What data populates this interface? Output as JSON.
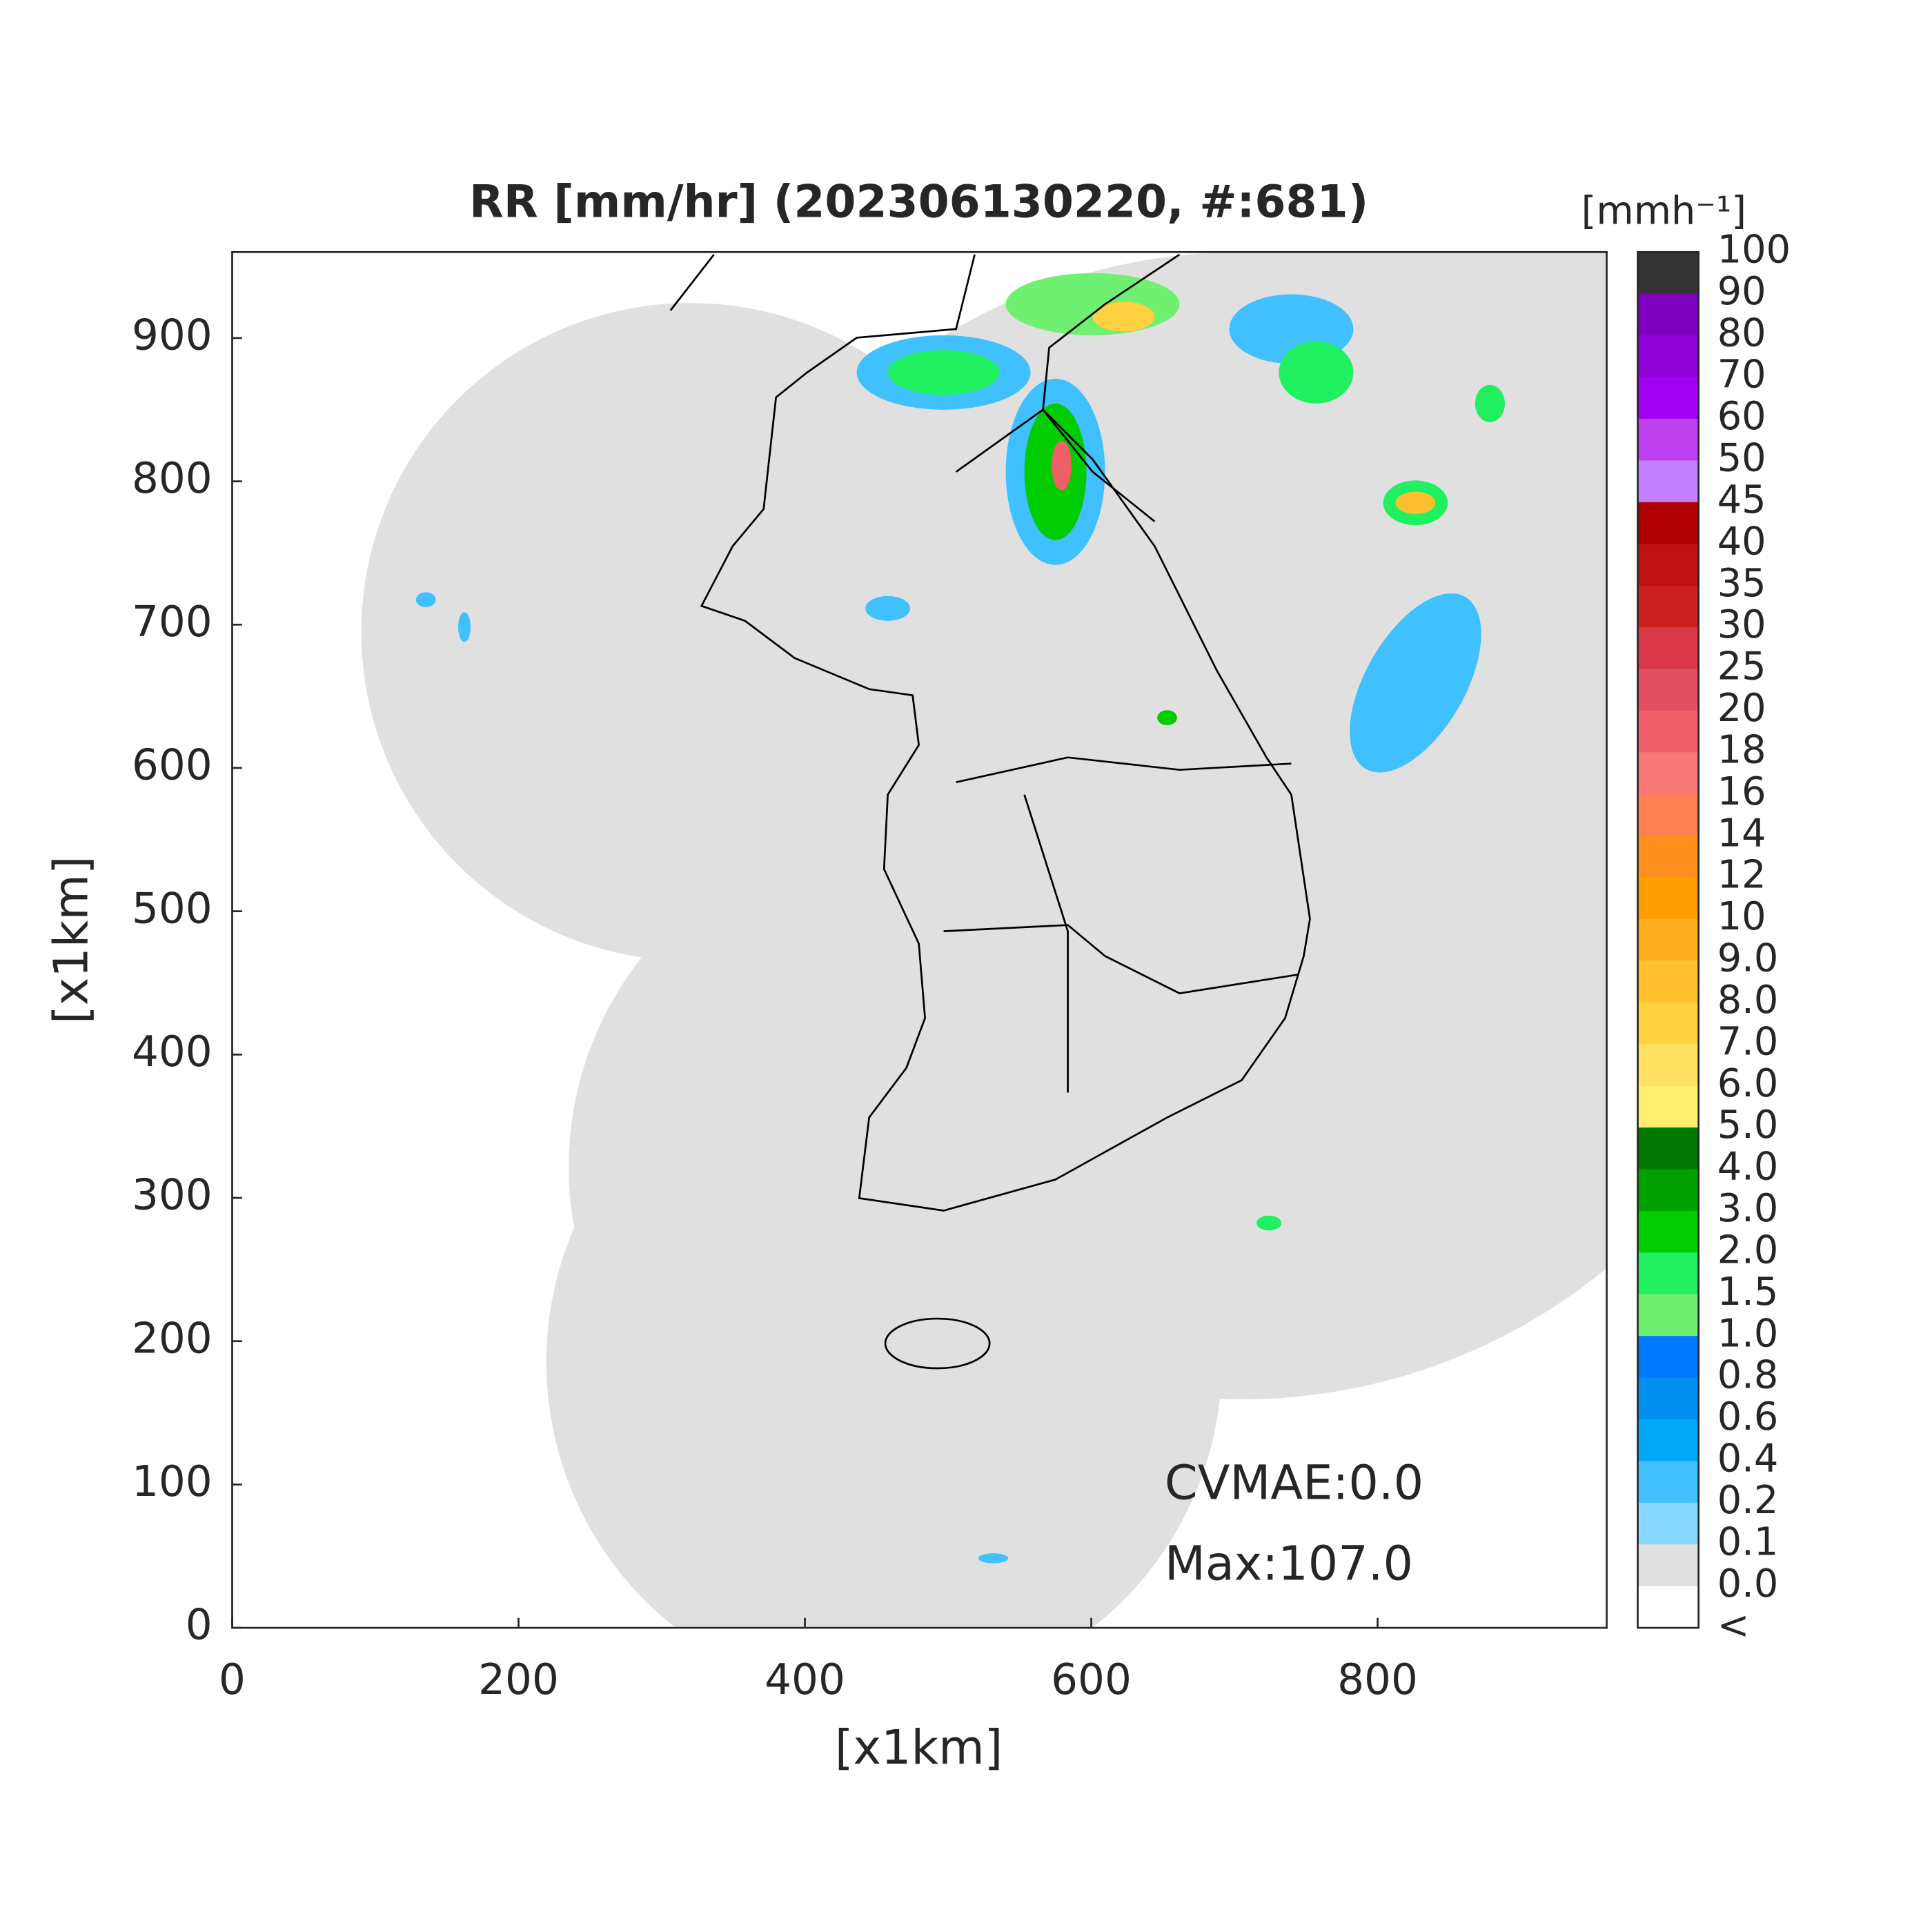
{
  "map": {
    "title": "RR [mm/hr] (202306130220, #:681)",
    "xlabel": "[x1km]",
    "ylabel": "[x1km]",
    "xlim": [
      0,
      960
    ],
    "ylim": [
      0,
      960
    ],
    "xticks": [
      0,
      200,
      400,
      600,
      800
    ],
    "yticks": [
      0,
      100,
      200,
      300,
      400,
      500,
      600,
      700,
      800,
      900
    ],
    "annotations": [
      "CVMAE:0.0",
      "Max:107.0"
    ],
    "colorbar": {
      "unit": "[mmh⁻¹]",
      "labels": [
        "100",
        "90",
        "80",
        "70",
        "60",
        "50",
        "45",
        "40",
        "35",
        "30",
        "25",
        "20",
        "18",
        "16",
        "14",
        "12",
        "10",
        "9.0",
        "8.0",
        "7.0",
        "6.0",
        "5.0",
        "4.0",
        "3.0",
        "2.0",
        "1.5",
        "1.0",
        "0.8",
        "0.6",
        "0.4",
        "0.2",
        "0.1",
        "0.0",
        "<"
      ],
      "colors": [
        "#333333",
        "#8000c0",
        "#9000d8",
        "#a000f0",
        "#c040f0",
        "#c080ff",
        "#b00000",
        "#c01010",
        "#cc2020",
        "#d83848",
        "#e05060",
        "#f06068",
        "#f87878",
        "#ff8050",
        "#ff9020",
        "#ffa000",
        "#ffb020",
        "#ffc030",
        "#ffd040",
        "#ffe060",
        "#fff070",
        "#007800",
        "#00a000",
        "#00cc00",
        "#20f060",
        "#70f070",
        "#0078ff",
        "#0090f0",
        "#00a8f8",
        "#40c0ff",
        "#88d8ff",
        "#e0e0e0",
        "#ffffff"
      ]
    }
  }
}
